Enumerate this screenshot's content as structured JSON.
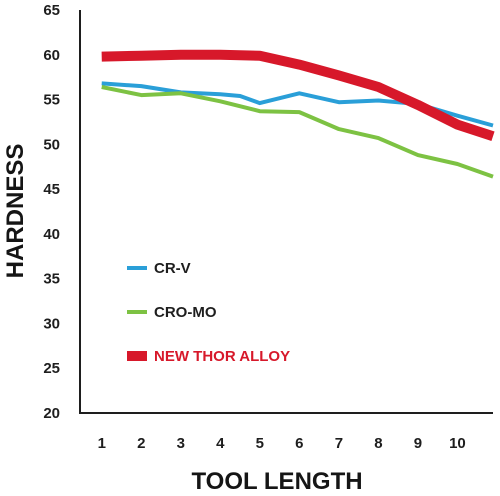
{
  "chart_data": {
    "type": "line",
    "title": "",
    "xlabel": "TOOL LENGTH",
    "ylabel": "HARDNESS",
    "x": [
      1,
      2,
      3,
      4,
      5,
      6,
      7,
      8,
      9,
      10
    ],
    "xlim": [
      0.45,
      10.9
    ],
    "ylim": [
      20,
      65
    ],
    "yticks": [
      20,
      25,
      30,
      35,
      40,
      45,
      50,
      55,
      60,
      65
    ],
    "grid": false,
    "legend_position": "center-left",
    "series": [
      {
        "name": "CR-V",
        "color": "#2a9fd8",
        "points": [
          [
            1,
            56.8
          ],
          [
            2,
            56.5
          ],
          [
            3,
            55.8
          ],
          [
            4,
            55.6
          ],
          [
            4.5,
            55.4
          ],
          [
            5,
            54.6
          ],
          [
            6,
            55.7
          ],
          [
            7,
            54.7
          ],
          [
            8,
            54.9
          ],
          [
            9,
            54.5
          ],
          [
            10,
            53.2
          ],
          [
            10.9,
            52.1
          ]
        ]
      },
      {
        "name": "CRO-MO",
        "color": "#7dc243",
        "points": [
          [
            1,
            56.4
          ],
          [
            2,
            55.5
          ],
          [
            3,
            55.7
          ],
          [
            4,
            54.8
          ],
          [
            5,
            53.7
          ],
          [
            6,
            53.6
          ],
          [
            7,
            51.7
          ],
          [
            8,
            50.7
          ],
          [
            9,
            48.8
          ],
          [
            10,
            47.8
          ],
          [
            10.9,
            46.4
          ]
        ]
      },
      {
        "name": "NEW THOR ALLOY",
        "color": "#d7182a",
        "points": [
          [
            1,
            59.8
          ],
          [
            2,
            59.9
          ],
          [
            3,
            60.0
          ],
          [
            4,
            60.0
          ],
          [
            5,
            59.9
          ],
          [
            6,
            58.9
          ],
          [
            7,
            57.7
          ],
          [
            8,
            56.4
          ],
          [
            9,
            54.4
          ],
          [
            10,
            52.2
          ],
          [
            10.9,
            50.9
          ]
        ]
      }
    ]
  }
}
